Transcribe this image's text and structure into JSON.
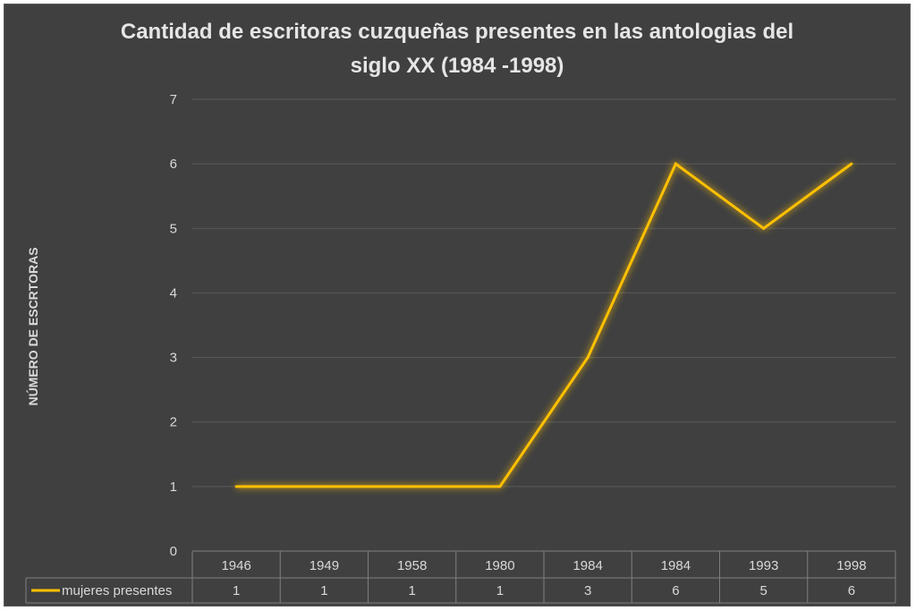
{
  "chart_data": {
    "type": "line",
    "title": "Cantidad de escritoras cuzqueñas presentes en las antologias del siglo XX (1984 -1998)",
    "title_lines": [
      "Cantidad de escritoras cuzqueñas presentes en las antologias del",
      "siglo XX (1984 -1998)"
    ],
    "xlabel": "",
    "ylabel": "NÚMERO DE ESCRTORAS",
    "categories": [
      "1946",
      "1949",
      "1958",
      "1980",
      "1984",
      "1984",
      "1993",
      "1998"
    ],
    "series": [
      {
        "name": "mujeres presentes",
        "values": [
          1,
          1,
          1,
          1,
          3,
          6,
          5,
          6
        ],
        "color": "#ffc000"
      }
    ],
    "ylim": [
      0,
      7
    ],
    "yticks": [
      "0",
      "1",
      "2",
      "3",
      "4",
      "5",
      "6",
      "7"
    ],
    "grid": true,
    "legend": "data-table",
    "colors": {
      "background": "#404040",
      "grid": "#5a5a5a",
      "text": "#d9d9d9",
      "line": "#ffc000"
    }
  }
}
